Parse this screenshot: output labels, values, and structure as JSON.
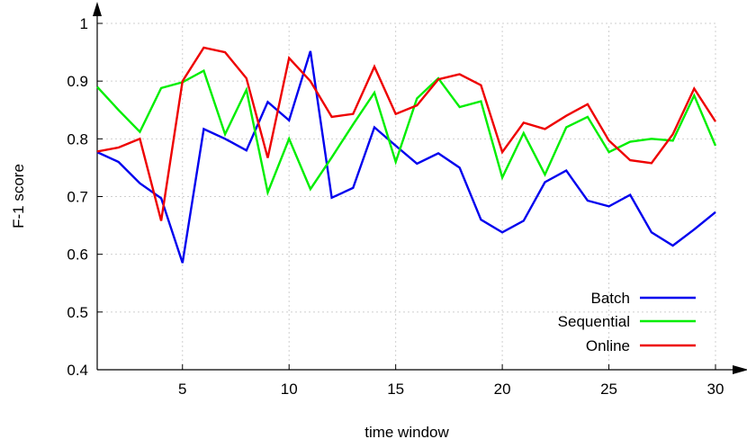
{
  "chart_data": {
    "type": "line",
    "xlabel": "time window",
    "ylabel": "F-1 score",
    "xlim": [
      1,
      30
    ],
    "ylim": [
      0.4,
      1.0
    ],
    "xticks": [
      "5",
      "10",
      "15",
      "20",
      "25",
      "30"
    ],
    "yticks": [
      "0.4",
      "0.5",
      "0.6",
      "0.7",
      "0.8",
      "0.9",
      "1"
    ],
    "grid": "dotted",
    "legend_position": "bottom-right",
    "x": [
      1,
      2,
      3,
      4,
      5,
      6,
      7,
      8,
      9,
      10,
      11,
      12,
      13,
      14,
      15,
      16,
      17,
      18,
      19,
      20,
      21,
      22,
      23,
      24,
      25,
      26,
      27,
      28,
      29,
      30
    ],
    "series": [
      {
        "name": "Batch",
        "color": "#0000ee",
        "values": [
          0.777,
          0.76,
          0.723,
          0.697,
          0.585,
          0.817,
          0.8,
          0.78,
          0.864,
          0.832,
          0.952,
          0.698,
          0.715,
          0.82,
          0.788,
          0.757,
          0.775,
          0.75,
          0.66,
          0.638,
          0.658,
          0.725,
          0.745,
          0.693,
          0.683,
          0.703,
          0.638,
          0.615,
          0.643,
          0.673
        ]
      },
      {
        "name": "Sequential",
        "color": "#00ee00",
        "values": [
          0.89,
          0.85,
          0.812,
          0.888,
          0.898,
          0.918,
          0.808,
          0.885,
          0.707,
          0.8,
          0.713,
          0.768,
          0.825,
          0.88,
          0.76,
          0.87,
          0.905,
          0.855,
          0.865,
          0.733,
          0.81,
          0.738,
          0.82,
          0.838,
          0.777,
          0.795,
          0.8,
          0.797,
          0.875,
          0.788
        ]
      },
      {
        "name": "Online",
        "color": "#ee0000",
        "values": [
          0.778,
          0.785,
          0.8,
          0.658,
          0.9,
          0.958,
          0.95,
          0.905,
          0.767,
          0.94,
          0.9,
          0.838,
          0.843,
          0.925,
          0.843,
          0.858,
          0.903,
          0.912,
          0.893,
          0.777,
          0.828,
          0.817,
          0.84,
          0.86,
          0.797,
          0.763,
          0.758,
          0.808,
          0.887,
          0.83
        ]
      }
    ]
  }
}
